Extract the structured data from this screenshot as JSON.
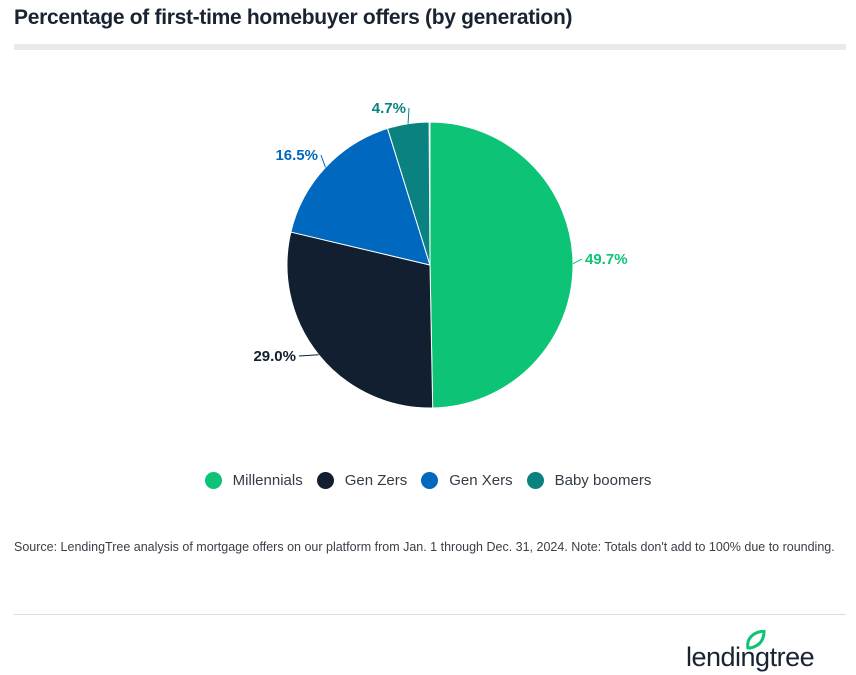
{
  "title": "Percentage of first-time homebuyer offers (by generation)",
  "chart_data": {
    "type": "pie",
    "title": "Percentage of first-time homebuyer offers (by generation)",
    "categories": [
      "Millennials",
      "Gen Zers",
      "Gen Xers",
      "Baby boomers"
    ],
    "values": [
      49.7,
      29.0,
      16.5,
      4.7
    ],
    "labels": [
      "49.7%",
      "29.0%",
      "16.5%",
      "4.7%"
    ],
    "colors": [
      "#0dc375",
      "#121f30",
      "#0068bf",
      "#0a8280"
    ],
    "legend_position": "bottom"
  },
  "legend": [
    {
      "label": "Millennials",
      "color": "#0dc375"
    },
    {
      "label": "Gen Zers",
      "color": "#121f30"
    },
    {
      "label": "Gen Xers",
      "color": "#0068bf"
    },
    {
      "label": "Baby boomers",
      "color": "#0a8280"
    }
  ],
  "source": "Source: LendingTree analysis of mortgage offers on our platform from Jan. 1 through Dec. 31, 2024. Note: Totals don't add to 100% due to rounding.",
  "logo": {
    "text": "lendingtree",
    "color": "#1a2332",
    "leaf_color": "#0dc375"
  }
}
